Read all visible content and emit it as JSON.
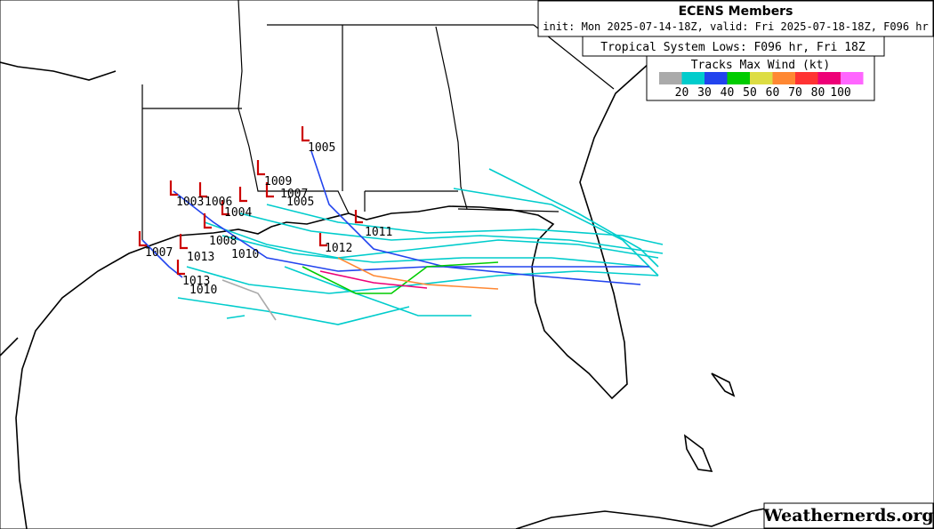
{
  "header": {
    "title": "ECENS Members",
    "subtitle": "init: Mon 2025-07-14-18Z, valid: Fri 2025-07-18-18Z, F096 hr"
  },
  "lows_box": "Tropical System Lows: F096 hr, Fri 18Z",
  "legend": {
    "title": "Tracks Max Wind (kt)",
    "colors": [
      "#aaaaaa",
      "#00cccc",
      "#2244ee",
      "#00cc00",
      "#dddd44",
      "#ff8833",
      "#ff3333",
      "#ee0077",
      "#ff66ff"
    ],
    "labels": [
      "20",
      "30",
      "40",
      "50",
      "60",
      "70",
      "80",
      "100"
    ]
  },
  "low_labels": [
    "1005",
    "1009",
    "1007",
    "1005",
    "1003",
    "1006",
    "1011",
    "1012",
    "1007",
    "1013",
    "1010",
    "1013",
    "1010",
    "1004",
    "1008"
  ],
  "watermark": "Weathernerds.org"
}
